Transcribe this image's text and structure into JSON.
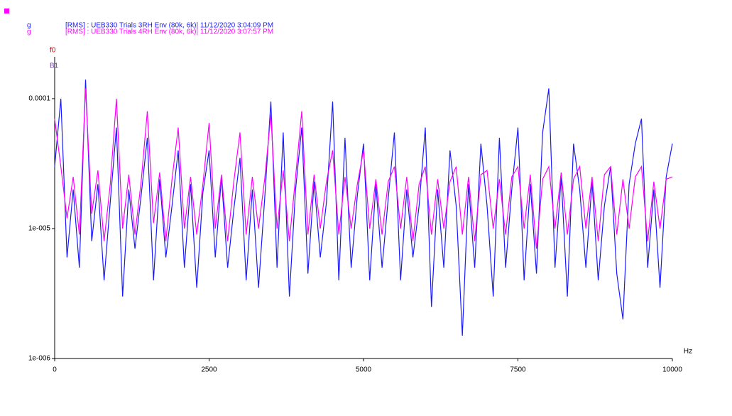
{
  "chart_data": {
    "type": "line",
    "ylog": true,
    "legend": "top-left",
    "x_label": "Hz",
    "cursor_labels": [
      {
        "text": "f0",
        "color": "#cc0000"
      },
      {
        "text": "B1",
        "color": "#8a2be2"
      }
    ],
    "x": [
      0,
      100,
      200,
      300,
      400,
      500,
      600,
      700,
      800,
      900,
      1000,
      1100,
      1200,
      1300,
      1400,
      1500,
      1600,
      1700,
      1800,
      1900,
      2000,
      2100,
      2200,
      2300,
      2400,
      2500,
      2600,
      2700,
      2800,
      2900,
      3000,
      3100,
      3200,
      3300,
      3400,
      3500,
      3600,
      3700,
      3800,
      3900,
      4000,
      4100,
      4200,
      4300,
      4400,
      4500,
      4600,
      4700,
      4800,
      4900,
      5000,
      5100,
      5200,
      5300,
      5400,
      5500,
      5600,
      5700,
      5800,
      5900,
      6000,
      6100,
      6200,
      6300,
      6400,
      6500,
      6600,
      6700,
      6800,
      6900,
      7000,
      7100,
      7200,
      7300,
      7400,
      7500,
      7600,
      7700,
      7800,
      7900,
      8000,
      8100,
      8200,
      8300,
      8400,
      8500,
      8600,
      8700,
      8800,
      8900,
      9000,
      9100,
      9200,
      9300,
      9400,
      9500,
      9600,
      9700,
      9800,
      9900,
      10000
    ],
    "series": [
      {
        "name": "[RMS] : UEB330 Trials 3RH Env (80k, 6k)| 11/12/2020 3:04:09 PM",
        "unit": "g",
        "color": "#1a1aff",
        "values": [
          3e-05,
          0.0001,
          6e-06,
          2e-05,
          5e-06,
          0.00014,
          8e-06,
          2.2e-05,
          4e-06,
          1.6e-05,
          6e-05,
          3e-06,
          2e-05,
          7e-06,
          1.8e-05,
          5e-05,
          4e-06,
          2.4e-05,
          6e-06,
          1.5e-05,
          4e-05,
          5e-06,
          2.2e-05,
          3.5e-06,
          1.9e-05,
          4e-05,
          6e-06,
          2.5e-05,
          5e-06,
          1.4e-05,
          3.5e-05,
          4e-06,
          2e-05,
          3.5e-06,
          1.7e-05,
          9.5e-05,
          5e-06,
          5.5e-05,
          3e-06,
          2e-05,
          6e-05,
          4.5e-06,
          2.3e-05,
          6e-06,
          1.6e-05,
          9.5e-05,
          4e-06,
          5e-05,
          5e-06,
          1.8e-05,
          4.5e-05,
          4e-06,
          2.2e-05,
          5e-06,
          1.7e-05,
          5.5e-05,
          4e-06,
          2e-05,
          6e-06,
          1.5e-05,
          6e-05,
          2.5e-06,
          2e-05,
          5e-06,
          4e-05,
          1.5e-05,
          1.5e-06,
          2.2e-05,
          5e-06,
          4.5e-05,
          1.5e-05,
          3e-06,
          5e-05,
          5e-06,
          2e-05,
          6e-05,
          4e-06,
          2.2e-05,
          4.5e-06,
          5.5e-05,
          0.00012,
          5e-06,
          2.5e-05,
          3e-06,
          4.5e-05,
          2e-05,
          5e-06,
          2.3e-05,
          4e-06,
          1.5e-05,
          3e-05,
          4.5e-06,
          2e-06,
          2.2e-05,
          4.5e-05,
          7e-05,
          5e-06,
          2e-05,
          3.5e-06,
          2.5e-05,
          4.5e-05
        ]
      },
      {
        "name": "[RMS] : UEB330 Trials 4RH Env (80k, 6k)| 11/12/2020 3:07:57 PM",
        "unit": "g",
        "color": "#ff00ff",
        "values": [
          7e-05,
          3e-05,
          1.2e-05,
          2.5e-05,
          9e-06,
          0.00012,
          1.3e-05,
          2.8e-05,
          8e-06,
          2.2e-05,
          0.0001,
          1e-05,
          2.6e-05,
          9e-06,
          2.3e-05,
          8e-05,
          1.1e-05,
          2.7e-05,
          8e-06,
          2.4e-05,
          6e-05,
          1e-05,
          2.5e-05,
          9e-06,
          2.2e-05,
          6.5e-05,
          1e-05,
          2.6e-05,
          8e-06,
          2.3e-05,
          5.5e-05,
          9e-06,
          2.5e-05,
          1e-05,
          2.4e-05,
          7.5e-05,
          1e-05,
          2.8e-05,
          8e-06,
          2.5e-05,
          8e-05,
          9e-06,
          2.6e-05,
          1e-05,
          2.3e-05,
          4e-05,
          9e-06,
          2.5e-05,
          1e-05,
          2.2e-05,
          4e-05,
          1e-05,
          2.4e-05,
          9e-06,
          2.3e-05,
          3e-05,
          1e-05,
          2.5e-05,
          8e-06,
          2.2e-05,
          3e-05,
          9e-06,
          2.4e-05,
          1e-05,
          2.3e-05,
          3e-05,
          9e-06,
          2.5e-05,
          8e-06,
          2.6e-05,
          2.8e-05,
          1e-05,
          2.4e-05,
          9e-06,
          2.5e-05,
          3e-05,
          1e-05,
          2.6e-05,
          7e-06,
          2.4e-05,
          3e-05,
          1e-05,
          2.7e-05,
          9e-06,
          2.4e-05,
          3e-05,
          1e-05,
          2.5e-05,
          8e-06,
          2.6e-05,
          3e-05,
          9e-06,
          2.4e-05,
          1e-05,
          2.5e-05,
          3e-05,
          8e-06,
          2.3e-05,
          1e-05,
          2.4e-05,
          2.5e-05
        ]
      }
    ],
    "xlim": [
      0,
      10000
    ],
    "xticks": [
      0,
      2500,
      5000,
      7500,
      10000
    ],
    "ylim": [
      1e-06,
      0.00021
    ],
    "yticks": [
      {
        "value": 1e-06,
        "label": "1e-006"
      },
      {
        "value": 1e-05,
        "label": "1e-005"
      },
      0.0001
    ]
  }
}
